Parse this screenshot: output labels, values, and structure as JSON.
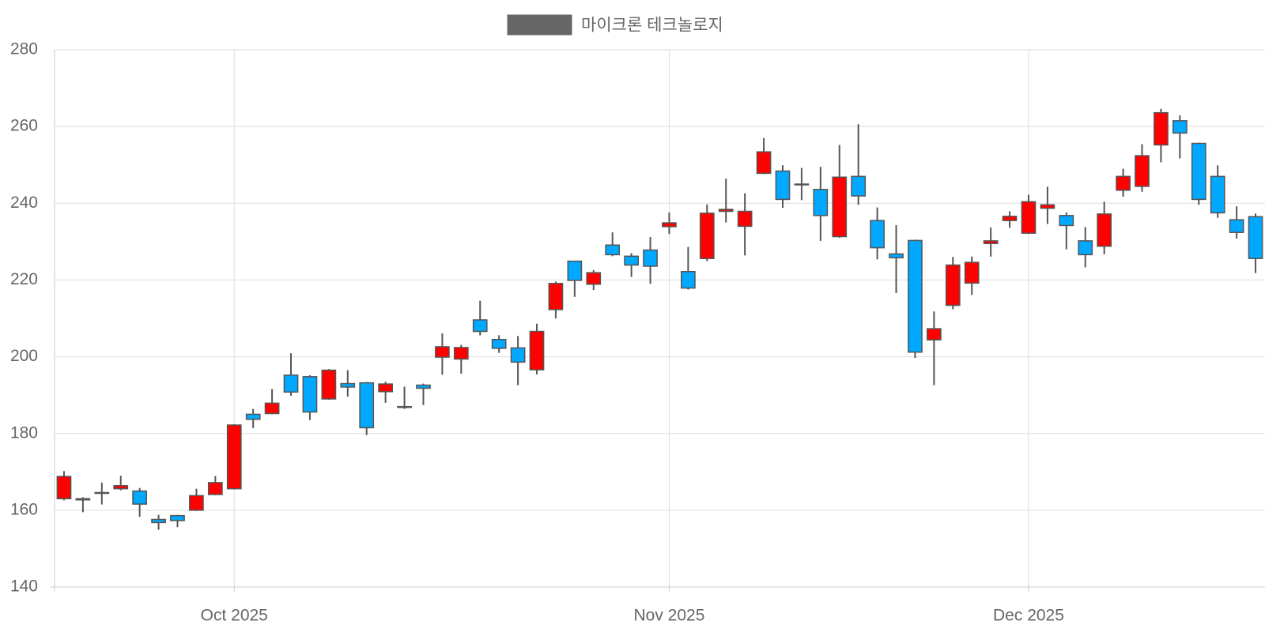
{
  "chart_data": {
    "type": "candlestick",
    "legend": "top",
    "grid": true,
    "categories": [
      null,
      null,
      null,
      null,
      null,
      null,
      null,
      null,
      null,
      null,
      null,
      null,
      null,
      null,
      null,
      null,
      null,
      null,
      null,
      null,
      null,
      null,
      null,
      null,
      null,
      null,
      null,
      null,
      null,
      null,
      null,
      null,
      null,
      null,
      null,
      null,
      null,
      null,
      null,
      null,
      null,
      null,
      null,
      null,
      null,
      null,
      null,
      null,
      null,
      null,
      null,
      null,
      null,
      null,
      null,
      null,
      null,
      null,
      null,
      null,
      null,
      null,
      null,
      null
    ],
    "xlim": [
      -0.5,
      63.5
    ],
    "xticks": [
      {
        "value": 9,
        "label": "Oct 2025"
      },
      {
        "value": 32,
        "label": "Nov 2025"
      },
      {
        "value": 51,
        "label": "Dec 2025"
      }
    ],
    "ylim": [
      140,
      280
    ],
    "yticks": [
      140,
      160,
      180,
      200,
      220,
      240,
      260,
      280
    ],
    "series": [
      {
        "name": "마이크론 테크놀로지",
        "color": "#666666",
        "up_color": "#ff0000",
        "down_color": "#00a8ff",
        "edge_color": "#555555",
        "open": [
          163,
          163,
          164.6,
          165.6,
          165,
          157.6,
          158.6,
          160,
          164.1,
          165.6,
          185,
          185.2,
          195.2,
          194.8,
          189,
          193,
          193.2,
          190.9,
          187,
          192.6,
          199.9,
          199.4,
          209.6,
          204.5,
          202.3,
          196.6,
          212.3,
          224.9,
          218.9,
          229.1,
          226.2,
          227.8,
          233.9,
          222.2,
          225.6,
          237.9,
          234,
          247.8,
          248.4,
          245,
          243.6,
          231.3,
          247,
          235.5,
          226.8,
          230.3,
          204.4,
          213.4,
          219.2,
          229.5,
          235.5,
          232.2,
          238.7,
          236.8,
          230.2,
          228.8,
          243.4,
          244.4,
          255.2,
          261.5,
          255.6,
          247,
          235.7,
          236.5
        ],
        "high": [
          170.2,
          163.4,
          167.2,
          169,
          165.8,
          158.8,
          158.8,
          165.6,
          168.9,
          182.4,
          186.4,
          191.6,
          200.9,
          195.2,
          196.8,
          196.5,
          193.4,
          193.5,
          192.2,
          193,
          206.1,
          203.1,
          214.6,
          205.6,
          205.4,
          208.6,
          219.6,
          225,
          222.6,
          232.4,
          227,
          231.2,
          237.6,
          228.6,
          239.7,
          246.4,
          242.6,
          257,
          249.9,
          249.2,
          249.5,
          255.2,
          260.6,
          238.9,
          234.3,
          230.5,
          211.8,
          226,
          226.1,
          233.7,
          237.9,
          242.2,
          244.3,
          237.6,
          233.8,
          240.4,
          249,
          255.4,
          264.6,
          262.9,
          255.8,
          249.9,
          239.2,
          237.3
        ],
        "low": [
          162.6,
          159.5,
          161.5,
          165.2,
          158.3,
          154.9,
          155.6,
          159.8,
          163.9,
          165.4,
          181.4,
          185,
          189.8,
          183.5,
          188.8,
          189.6,
          179.6,
          188,
          186.4,
          187.4,
          195.3,
          195.6,
          205.6,
          201,
          192.6,
          195.4,
          210,
          215.6,
          217.4,
          226.2,
          220.8,
          219,
          232,
          217.5,
          224.9,
          235,
          226.4,
          247.6,
          238.8,
          240.8,
          230.2,
          231,
          239.6,
          225.4,
          216.6,
          199.7,
          192.6,
          212.4,
          216.1,
          226.1,
          233.6,
          232,
          234.6,
          228,
          223.3,
          226.7,
          241.7,
          243,
          250.7,
          251.7,
          239.6,
          236.2,
          230.8,
          221.8
        ],
        "close": [
          168.8,
          162.7,
          164.4,
          166.4,
          161.6,
          156.8,
          157.3,
          163.8,
          167.2,
          182.2,
          183.7,
          187.9,
          190.8,
          185.6,
          196.5,
          192.1,
          181.5,
          192.9,
          186.9,
          191.8,
          202.6,
          202.4,
          206.6,
          202.2,
          198.6,
          206.6,
          219.1,
          219.9,
          221.9,
          226.6,
          223.9,
          223.6,
          234.9,
          217.9,
          237.4,
          238.4,
          237.9,
          253.4,
          241,
          244.9,
          236.8,
          246.8,
          241.9,
          228.4,
          225.8,
          201.2,
          207.3,
          223.9,
          224.6,
          230.2,
          236.6,
          240.4,
          239.6,
          234.2,
          226.6,
          237.2,
          247,
          252.4,
          263.6,
          258.3,
          241,
          237.5,
          232.4,
          225.6
        ]
      }
    ]
  }
}
